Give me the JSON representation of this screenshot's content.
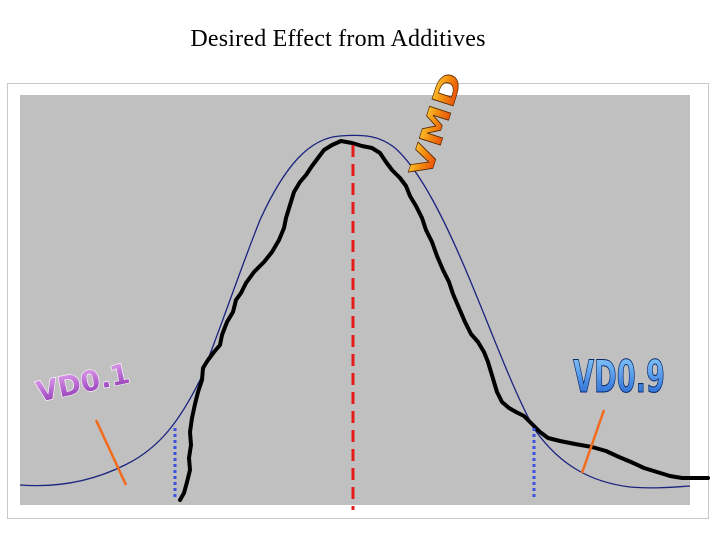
{
  "title": "Desired Effect from Additives",
  "labels": {
    "vmd": "VMD",
    "vd01": "VD0.1",
    "vd09": "VD0.9"
  },
  "colors": {
    "plot_background": "#c0c0c0",
    "reference_curve": "#1a237e",
    "target_curve": "#000000",
    "median_line": "#e31b1b",
    "percentile_lines": "#3b4fe0",
    "pointer_lines": "#f26b1d",
    "vd01_fill": "#b24fd0",
    "vd09_fill": "#2a7de1",
    "vmd_fill": "#f28c0f"
  }
}
